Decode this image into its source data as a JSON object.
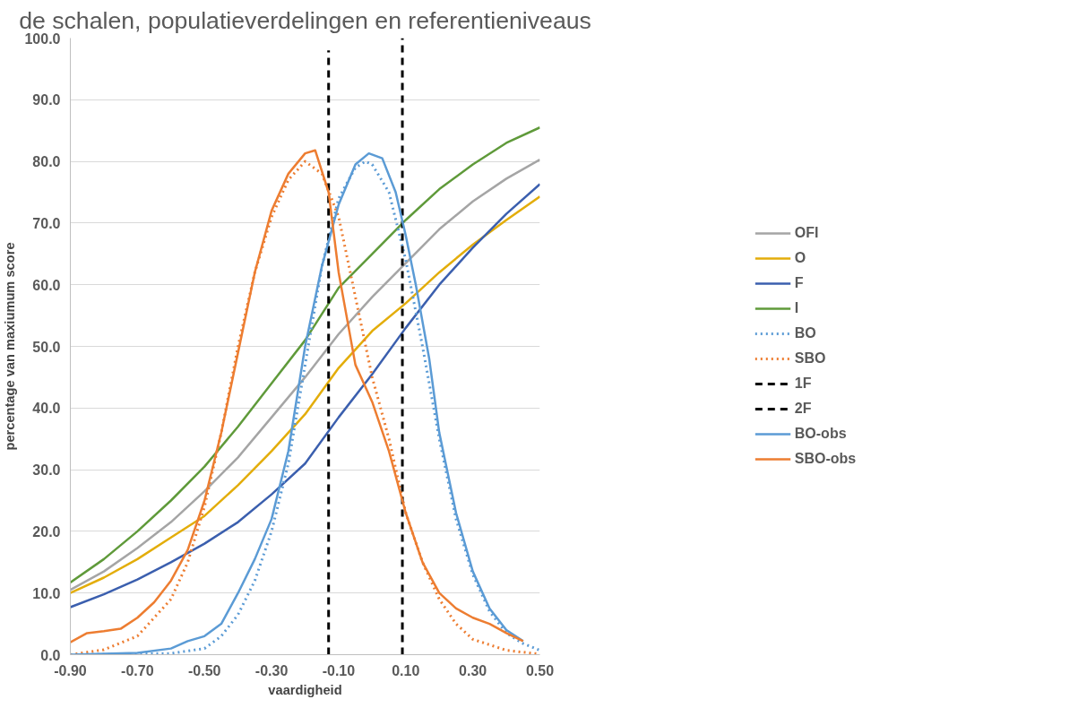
{
  "chart_data": {
    "type": "line",
    "title": "de schalen, populatieverdelingen en referentieniveaus",
    "xlabel": "vaardigheid",
    "ylabel": "percentage van maxiumum score",
    "xlim": [
      -0.9,
      0.5
    ],
    "ylim": [
      0,
      100
    ],
    "xticks": [
      {
        "value": -0.9,
        "label": "-0.90"
      },
      {
        "value": -0.7,
        "label": "-0.70"
      },
      {
        "value": -0.5,
        "label": "-0.50"
      },
      {
        "value": -0.3,
        "label": "-0.30"
      },
      {
        "value": -0.1,
        "label": "-0.10"
      },
      {
        "value": 0.1,
        "label": "0.10"
      },
      {
        "value": 0.3,
        "label": "0.30"
      },
      {
        "value": 0.5,
        "label": "0.50"
      }
    ],
    "yticks": [
      {
        "value": 0,
        "label": "0.0"
      },
      {
        "value": 10,
        "label": "10.0"
      },
      {
        "value": 20,
        "label": "20.0"
      },
      {
        "value": 30,
        "label": "30.0"
      },
      {
        "value": 40,
        "label": "40.0"
      },
      {
        "value": 50,
        "label": "50.0"
      },
      {
        "value": 60,
        "label": "60.0"
      },
      {
        "value": 70,
        "label": "70.0"
      },
      {
        "value": 80,
        "label": "80.0"
      },
      {
        "value": 90,
        "label": "90.0"
      },
      {
        "value": 100,
        "label": "100.0"
      }
    ],
    "grid": "y",
    "legend": "right",
    "series": [
      {
        "name": "OFI",
        "color": "#a5a5a5",
        "line_style": "solid",
        "x": [
          -0.9,
          -0.8,
          -0.7,
          -0.6,
          -0.5,
          -0.4,
          -0.3,
          -0.2,
          -0.1,
          0,
          0.1,
          0.2,
          0.3,
          0.4,
          0.5
        ],
        "values": [
          10.5,
          13.5,
          17.3,
          21.5,
          26.5,
          32,
          38.5,
          45,
          52,
          58,
          63.5,
          69,
          73.5,
          77.2,
          80.3
        ]
      },
      {
        "name": "O",
        "color": "#e3ad0a",
        "line_style": "solid",
        "x": [
          -0.9,
          -0.8,
          -0.7,
          -0.6,
          -0.5,
          -0.4,
          -0.3,
          -0.2,
          -0.1,
          0,
          0.1,
          0.2,
          0.3,
          0.4,
          0.5
        ],
        "values": [
          10,
          12.5,
          15.5,
          19,
          22.5,
          27.5,
          33,
          39,
          46.5,
          52.5,
          57,
          62,
          66.5,
          70.5,
          74.3
        ]
      },
      {
        "name": "F",
        "color": "#3b5fae",
        "line_style": "solid",
        "x": [
          -0.9,
          -0.8,
          -0.7,
          -0.6,
          -0.5,
          -0.4,
          -0.3,
          -0.2,
          -0.1,
          0,
          0.1,
          0.2,
          0.3,
          0.4,
          0.5
        ],
        "values": [
          7.7,
          9.8,
          12.2,
          15,
          18,
          21.5,
          26,
          31,
          38.5,
          45.5,
          53,
          60,
          66,
          71.5,
          76.3
        ]
      },
      {
        "name": "I",
        "color": "#5f9a3a",
        "line_style": "solid",
        "x": [
          -0.9,
          -0.8,
          -0.7,
          -0.6,
          -0.5,
          -0.4,
          -0.3,
          -0.2,
          -0.1,
          0,
          0.1,
          0.2,
          0.3,
          0.4,
          0.5
        ],
        "values": [
          11.7,
          15.5,
          20,
          25,
          30.5,
          37,
          44,
          51,
          59.5,
          65,
          70.5,
          75.5,
          79.5,
          83,
          85.5
        ]
      },
      {
        "name": "BO",
        "color": "#5b9bd5",
        "line_style": "dotted",
        "x": [
          -0.9,
          -0.6,
          -0.5,
          -0.45,
          -0.4,
          -0.35,
          -0.3,
          -0.25,
          -0.2,
          -0.15,
          -0.1,
          -0.05,
          -0.02,
          0,
          0.05,
          0.1,
          0.15,
          0.2,
          0.25,
          0.3,
          0.35,
          0.4,
          0.45,
          0.5
        ],
        "values": [
          0,
          0.2,
          1,
          3,
          6.5,
          12,
          20,
          31,
          47,
          63,
          74,
          79,
          80,
          79.5,
          75,
          64,
          50,
          35,
          22,
          13,
          7,
          3.5,
          1.8,
          0.7
        ]
      },
      {
        "name": "SBO",
        "color": "#ed7d31",
        "line_style": "dotted",
        "x": [
          -0.9,
          -0.8,
          -0.7,
          -0.6,
          -0.55,
          -0.5,
          -0.45,
          -0.4,
          -0.35,
          -0.3,
          -0.25,
          -0.2,
          -0.15,
          -0.1,
          -0.05,
          0,
          0.05,
          0.1,
          0.15,
          0.2,
          0.25,
          0.3,
          0.4,
          0.5
        ],
        "values": [
          0,
          0.8,
          3,
          9,
          15,
          24,
          36,
          50,
          62,
          71,
          77,
          80,
          78,
          71,
          58,
          45,
          35,
          23,
          15,
          9,
          5,
          2.5,
          0.7,
          0.1
        ]
      },
      {
        "name": "1F",
        "color": "#000000",
        "line_style": "dashed",
        "x": [
          -0.13,
          -0.13
        ],
        "values": [
          0,
          98
        ]
      },
      {
        "name": "2F",
        "color": "#000000",
        "line_style": "dashed",
        "x": [
          0.09,
          0.09
        ],
        "values": [
          0,
          100
        ]
      },
      {
        "name": "BO-obs",
        "color": "#5b9bd5",
        "line_style": "solid",
        "x": [
          -0.9,
          -0.7,
          -0.6,
          -0.55,
          -0.5,
          -0.45,
          -0.4,
          -0.35,
          -0.3,
          -0.25,
          -0.2,
          -0.15,
          -0.1,
          -0.05,
          -0.01,
          0.03,
          0.07,
          0.1,
          0.13,
          0.17,
          0.2,
          0.25,
          0.3,
          0.35,
          0.4,
          0.45
        ],
        "values": [
          0,
          0.3,
          1,
          2.2,
          3,
          5,
          10,
          15.5,
          22,
          33,
          50,
          63,
          73,
          79.5,
          81.3,
          80.5,
          75,
          68,
          60,
          48,
          36,
          23,
          13.5,
          7.5,
          4,
          2.2
        ]
      },
      {
        "name": "SBO-obs",
        "color": "#ed7d31",
        "line_style": "solid",
        "x": [
          -0.9,
          -0.85,
          -0.8,
          -0.75,
          -0.7,
          -0.65,
          -0.6,
          -0.55,
          -0.5,
          -0.45,
          -0.4,
          -0.35,
          -0.3,
          -0.25,
          -0.2,
          -0.17,
          -0.13,
          -0.1,
          -0.05,
          0,
          0.05,
          0.1,
          0.15,
          0.2,
          0.25,
          0.3,
          0.35,
          0.4,
          0.45
        ],
        "values": [
          2,
          3.5,
          3.8,
          4.2,
          6,
          8.5,
          12,
          17,
          25,
          36,
          49,
          62,
          72,
          78,
          81.3,
          81.8,
          75,
          62,
          47,
          41,
          33,
          23,
          15,
          10,
          7.5,
          6,
          5,
          3.5,
          2.2
        ]
      }
    ]
  }
}
